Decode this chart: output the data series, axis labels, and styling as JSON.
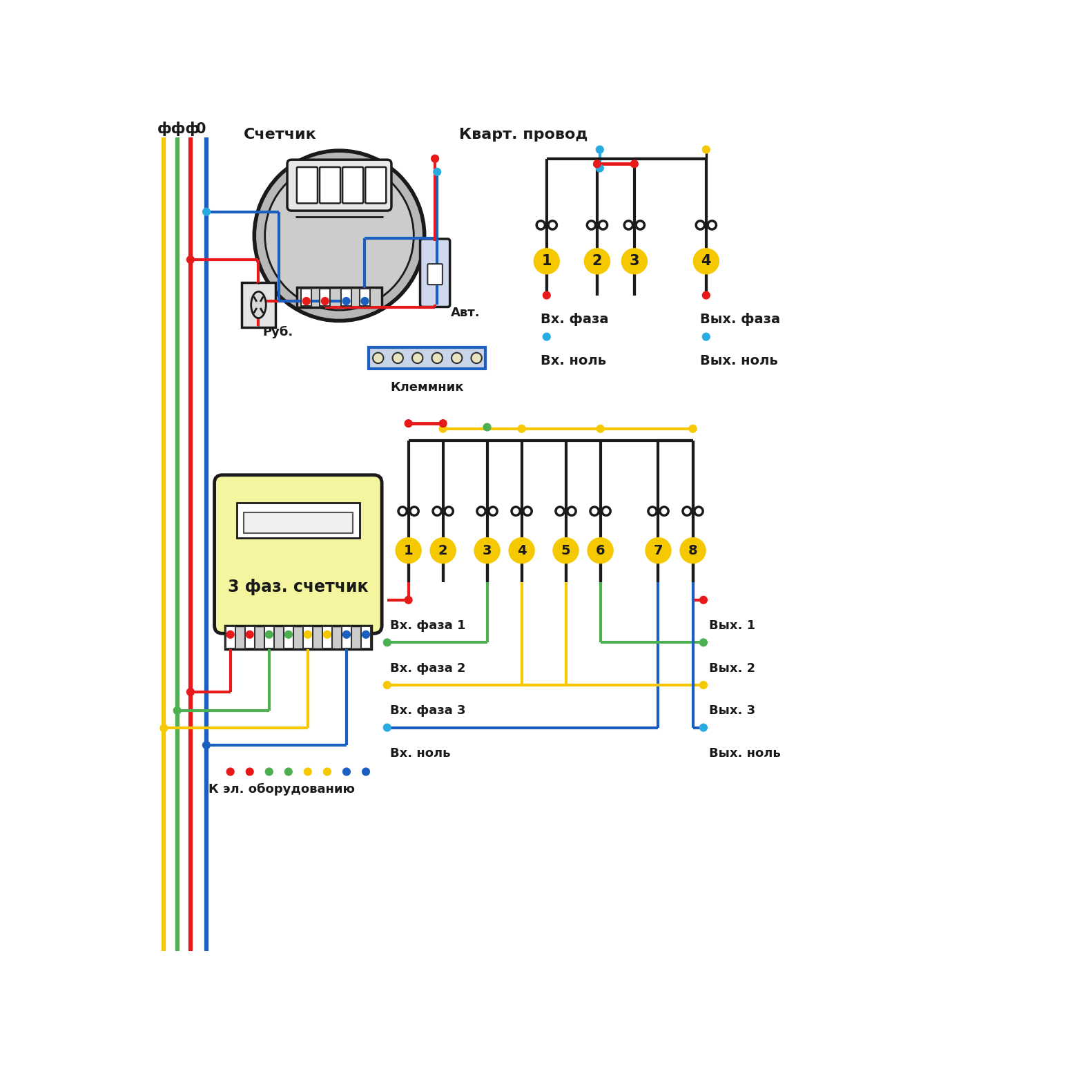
{
  "bg": "#ffffff",
  "red": "#e8191a",
  "blue": "#1b5fc0",
  "yellow": "#f5c800",
  "green": "#4db050",
  "lightblue": "#29abe2",
  "black": "#1a1a1a",
  "gray1": "#c0c0c0",
  "gray2": "#999999",
  "gray3": "#cccccc",
  "metergray": "#b8b8b8",
  "meterdark": "#888888",
  "yellowbg": "#f5f5a0",
  "avtcolor": "#d0d8f0",
  "texts": {
    "fff": "ффф",
    "zero": "0",
    "schetchik": "Счетчик",
    "kvart": "Кварт. провод",
    "rub": "Руб.",
    "avt": "Авт.",
    "klemm": "Клеммник",
    "vxfaza": "Вх. фаза",
    "vyxfaza": "Вых. фаза",
    "vxnol": "Вх. ноль",
    "vyxnol": "Вых. ноль",
    "meter3": "3 фаз. счетчик",
    "kel": "К эл. оборудованию",
    "vxf1": "Вх. фаза 1",
    "vxf2": "Вх. фаза 2",
    "vxf3": "Вх. фаза 3",
    "vxn": "Вх. ноль",
    "vyx1": "Вых. 1",
    "vyx2": "Вых. 2",
    "vyx3": "Вых. 3",
    "vyxn": "Вых. ноль"
  }
}
